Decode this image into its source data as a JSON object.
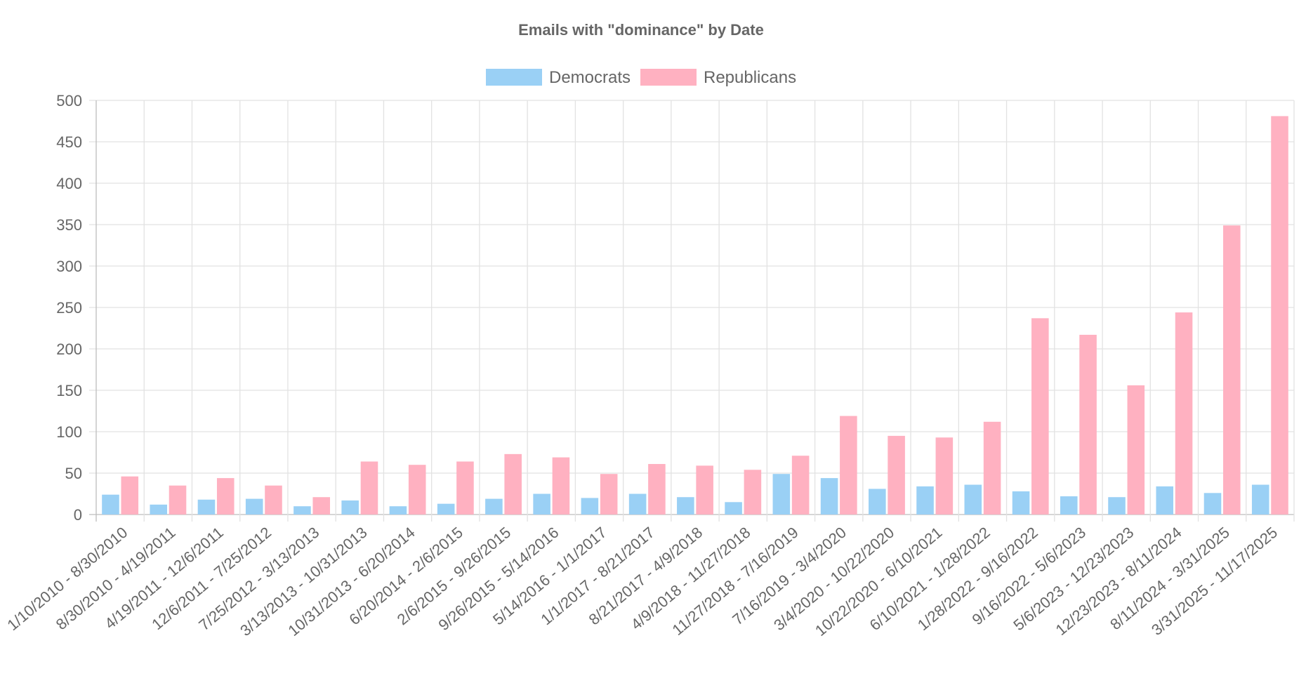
{
  "chart_data": {
    "type": "bar",
    "title": "Emails with \"dominance\" by Date",
    "xlabel": "",
    "ylabel": "",
    "ylim": [
      0,
      500
    ],
    "yticks": [
      0,
      50,
      100,
      150,
      200,
      250,
      300,
      350,
      400,
      450,
      500
    ],
    "grid": true,
    "legend_position": "top-center",
    "categories": [
      "1/10/2010 - 8/30/2010",
      "8/30/2010 - 4/19/2011",
      "4/19/2011 - 12/6/2011",
      "12/6/2011 - 7/25/2012",
      "7/25/2012 - 3/13/2013",
      "3/13/2013 - 10/31/2013",
      "10/31/2013 - 6/20/2014",
      "6/20/2014 - 2/6/2015",
      "2/6/2015 - 9/26/2015",
      "9/26/2015 - 5/14/2016",
      "5/14/2016 - 1/1/2017",
      "1/1/2017 - 8/21/2017",
      "8/21/2017 - 4/9/2018",
      "4/9/2018 - 11/27/2018",
      "11/27/2018 - 7/16/2019",
      "7/16/2019 - 3/4/2020",
      "3/4/2020 - 10/22/2020",
      "10/22/2020 - 6/10/2021",
      "6/10/2021 - 1/28/2022",
      "1/28/2022 - 9/16/2022",
      "9/16/2022 - 5/6/2023",
      "5/6/2023 - 12/23/2023",
      "12/23/2023 - 8/11/2024",
      "8/11/2024 - 3/31/2025",
      "3/31/2025 - 11/17/2025"
    ],
    "series": [
      {
        "name": "Democrats",
        "fill": "#9ad0f5",
        "stroke": "#36a2eb",
        "values": [
          24,
          12,
          18,
          19,
          10,
          17,
          10,
          13,
          19,
          25,
          20,
          25,
          21,
          15,
          49,
          44,
          31,
          34,
          36,
          28,
          22,
          21,
          34,
          26,
          36
        ]
      },
      {
        "name": "Republicans",
        "fill": "#ffb1c1",
        "stroke": "#ff6384",
        "values": [
          46,
          35,
          44,
          35,
          21,
          64,
          60,
          64,
          73,
          69,
          49,
          61,
          59,
          54,
          71,
          119,
          95,
          93,
          112,
          237,
          217,
          156,
          244,
          349,
          481
        ]
      }
    ]
  }
}
